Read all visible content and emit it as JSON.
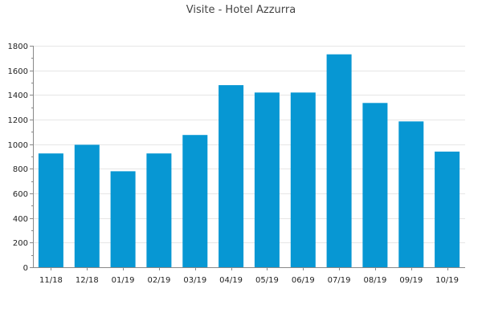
{
  "chart_data": {
    "type": "bar",
    "title": "Visite - Hotel Azzurra",
    "xlabel": "",
    "ylabel": "",
    "categories": [
      "11/18",
      "12/18",
      "01/19",
      "02/19",
      "03/19",
      "04/19",
      "05/19",
      "06/19",
      "07/19",
      "08/19",
      "09/19",
      "10/19"
    ],
    "values": [
      925,
      995,
      780,
      925,
      1075,
      1480,
      1420,
      1420,
      1730,
      1335,
      1185,
      940
    ],
    "ylim": [
      0,
      1800
    ],
    "yticks": [
      0,
      200,
      400,
      600,
      800,
      1000,
      1200,
      1400,
      1600,
      1800
    ],
    "grid": true,
    "legend": "none",
    "bar_color": "#0797d3"
  }
}
